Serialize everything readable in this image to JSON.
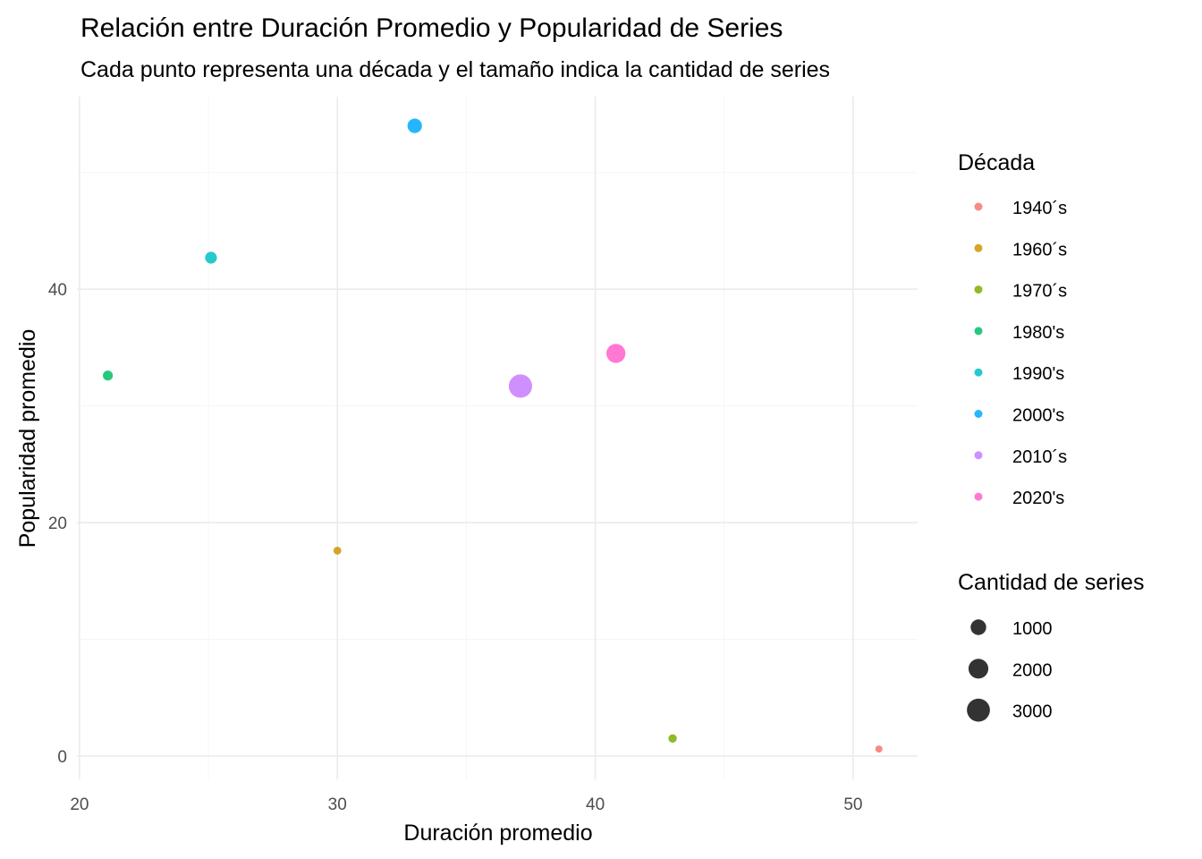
{
  "chart_data": {
    "type": "scatter",
    "title": "Relación entre Duración Promedio y Popularidad de Series",
    "subtitle": "Cada punto representa una década y el tamaño indica la cantidad de series",
    "xlabel": "Duración promedio",
    "ylabel": "Popularidad promedio",
    "xlim": [
      19.9,
      52.5
    ],
    "ylim": [
      -2,
      56.5
    ],
    "x_ticks": [
      20,
      30,
      40,
      50
    ],
    "y_ticks": [
      0,
      20,
      40
    ],
    "x_minor": [
      25,
      35,
      45
    ],
    "y_minor": [
      10,
      30,
      50
    ],
    "grid": true,
    "legend_position": "right",
    "color_legend_title": "Década",
    "size_legend_title": "Cantidad de series",
    "size_legend": [
      {
        "label": "1000",
        "value": 1000
      },
      {
        "label": "2000",
        "value": 2000
      },
      {
        "label": "3000",
        "value": 3000
      }
    ],
    "points": [
      {
        "decade": "1940´s",
        "x": 51.0,
        "y": 0.6,
        "count": 30,
        "color": "#F8766D"
      },
      {
        "decade": "1960´s",
        "x": 30.0,
        "y": 17.6,
        "count": 60,
        "color": "#CD9600"
      },
      {
        "decade": "1970´s",
        "x": 43.0,
        "y": 1.5,
        "count": 90,
        "color": "#7CAE00"
      },
      {
        "decade": "1980's",
        "x": 21.1,
        "y": 32.6,
        "count": 200,
        "color": "#00BE67"
      },
      {
        "decade": "1990's",
        "x": 25.1,
        "y": 42.7,
        "count": 400,
        "color": "#00BFC4"
      },
      {
        "decade": "2000's",
        "x": 33.0,
        "y": 54.0,
        "count": 800,
        "color": "#00A9FF"
      },
      {
        "decade": "2010´s",
        "x": 37.1,
        "y": 31.7,
        "count": 3100,
        "color": "#C77CFF"
      },
      {
        "decade": "2020's",
        "x": 40.8,
        "y": 34.5,
        "count": 1800,
        "color": "#FF61CC"
      }
    ]
  }
}
